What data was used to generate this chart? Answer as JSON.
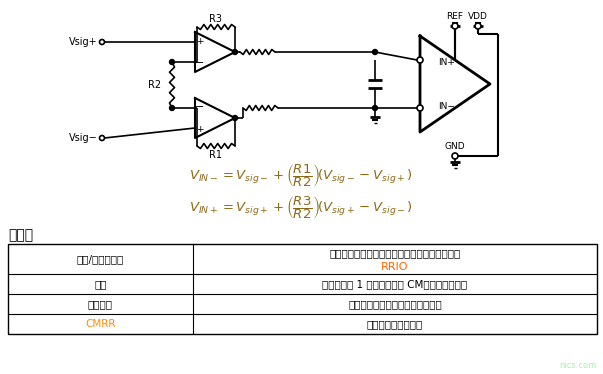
{
  "bg_color": "#ffffff",
  "formula1_color": "#8B6914",
  "formula2_color": "#8B6914",
  "section_title": "利与弊",
  "table_data": [
    [
      "裕量/单电源供电",
      "对于依赖增益的单电源工作模式，可能需要提供",
      "RRIO"
    ],
    [
      "增益",
      "仅允许大于 1 的增益；固定 CM，无电平转换。",
      ""
    ],
    [
      "输入阻抗",
      "受放大器输入漏电流限制的高阻抗",
      ""
    ],
    [
      "CMRR",
      "共模抑制性能欠佳。",
      ""
    ]
  ],
  "table_col1_colors": [
    "#000000",
    "#000000",
    "#000000",
    "#FF8C00"
  ],
  "rrio_color": "#FF6600",
  "watermark": "nics.com",
  "watermark_color": "#90EE90"
}
